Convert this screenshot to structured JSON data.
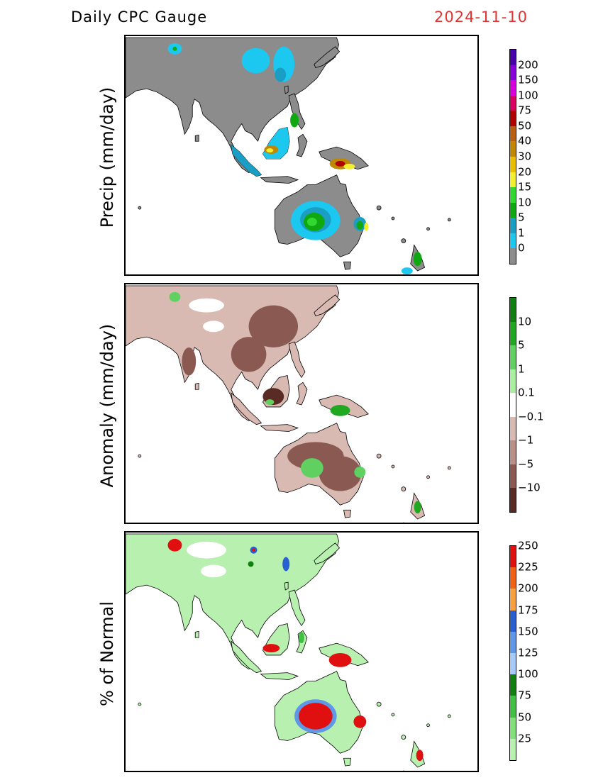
{
  "header": {
    "title": "Daily CPC Gauge",
    "date": "2024-11-10"
  },
  "panels": [
    {
      "ylabel": "Precip (mm/day)",
      "land_color": "#8c8c8c",
      "colorbar": {
        "colors": [
          "#8c8c8c",
          "#1cc8f0",
          "#1a9ec4",
          "#10a810",
          "#30d830",
          "#f0f030",
          "#e8c000",
          "#c08800",
          "#b86010",
          "#b00000",
          "#d80060",
          "#d800d8",
          "#8800d8",
          "#4800a8"
        ],
        "labels": [
          "0",
          "1",
          "5",
          "10",
          "15",
          "20",
          "30",
          "40",
          "50",
          "75",
          "100",
          "150",
          "200"
        ]
      }
    },
    {
      "ylabel": "Anomaly (mm/day)",
      "land_color": "#d8bab2",
      "colorbar": {
        "colors": [
          "#5a2a24",
          "#8a5a52",
          "#b89088",
          "#d8bab2",
          "#ffffff",
          "#a8f0a0",
          "#60d060",
          "#20a820",
          "#108010"
        ],
        "labels": [
          "−10",
          "−5",
          "−1",
          "−0.1",
          "0.1",
          "1",
          "5",
          "10"
        ]
      }
    },
    {
      "ylabel": "% of Normal",
      "land_color": "#b8f0b0",
      "colorbar": {
        "colors": [
          "#b8f0b0",
          "#80e078",
          "#40c040",
          "#108010",
          "#a8c8f8",
          "#6098e8",
          "#2860d0",
          "#f8a040",
          "#f06018",
          "#e01010"
        ],
        "labels": [
          "25",
          "50",
          "75",
          "100",
          "125",
          "150",
          "175",
          "200",
          "225",
          "250"
        ]
      }
    }
  ]
}
